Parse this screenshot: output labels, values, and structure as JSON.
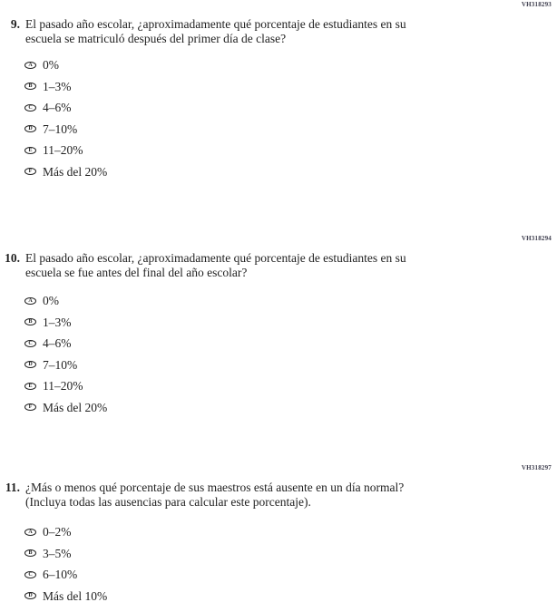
{
  "document": {
    "questions": [
      {
        "code": "VH318293",
        "number": "9.",
        "lines": [
          "El pasado año escolar, ¿aproximadamente qué porcentaje de estudiantes en su",
          "escuela se matriculó después del primer día de clase?"
        ],
        "options": [
          {
            "letter": "A",
            "label": "0%"
          },
          {
            "letter": "B",
            "label": "1–3%"
          },
          {
            "letter": "C",
            "label": "4–6%"
          },
          {
            "letter": "D",
            "label": "7–10%"
          },
          {
            "letter": "E",
            "label": "11–20%"
          },
          {
            "letter": "F",
            "label": "Más del 20%"
          }
        ]
      },
      {
        "code": "VH318294",
        "number": "10.",
        "lines": [
          "El pasado año escolar, ¿aproximadamente qué porcentaje de estudiantes en su",
          "escuela se fue antes del final del año escolar?"
        ],
        "options": [
          {
            "letter": "A",
            "label": "0%"
          },
          {
            "letter": "B",
            "label": "1–3%"
          },
          {
            "letter": "C",
            "label": "4–6%"
          },
          {
            "letter": "D",
            "label": "7–10%"
          },
          {
            "letter": "E",
            "label": "11–20%"
          },
          {
            "letter": "F",
            "label": "Más del 20%"
          }
        ]
      },
      {
        "code": "VH318297",
        "number": "11.",
        "lines": [
          "¿Más o menos qué porcentaje de sus maestros está ausente en un día normal?",
          "(Incluya todas las ausencias para calcular este porcentaje)."
        ],
        "options": [
          {
            "letter": "A",
            "label": "0–2%"
          },
          {
            "letter": "B",
            "label": "3–5%"
          },
          {
            "letter": "C",
            "label": "6–10%"
          },
          {
            "letter": "D",
            "label": "Más del 10%"
          }
        ]
      }
    ],
    "colors": {
      "text": "#1f1f1f",
      "code": "#3d3d4d",
      "background": "#ffffff"
    }
  }
}
